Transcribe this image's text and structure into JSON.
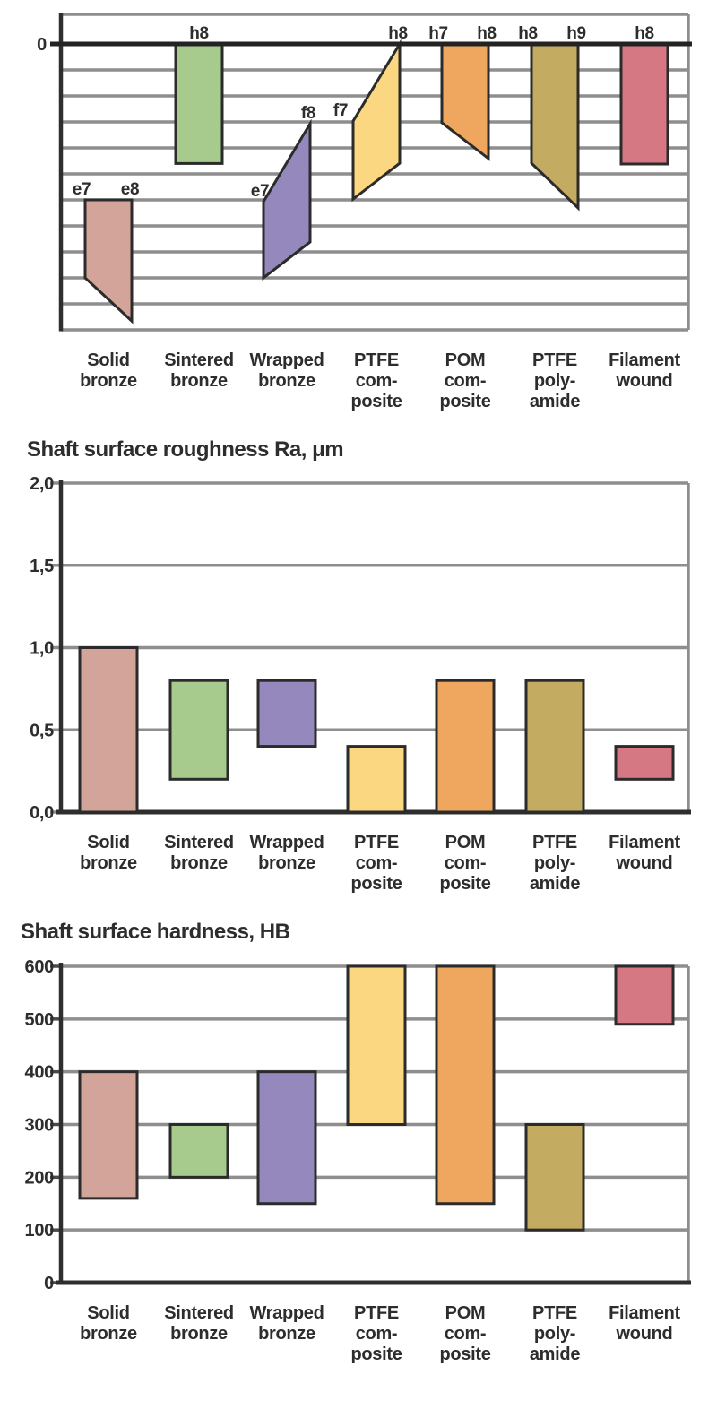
{
  "palette": {
    "background": "#ffffff",
    "text": "#2d2d2d",
    "grid": "#8E8E8E",
    "axis": "#2e2e2e",
    "zero_line": "#232323",
    "shape_stroke": "#2b2b2b"
  },
  "materials": [
    {
      "id": "solid-bronze",
      "label_lines": [
        "Solid",
        "bronze"
      ],
      "color": "#D3A49A"
    },
    {
      "id": "sintered-bronze",
      "label_lines": [
        "Sintered",
        "bronze"
      ],
      "color": "#A6CB8C"
    },
    {
      "id": "wrapped-bronze",
      "label_lines": [
        "Wrapped",
        "bronze"
      ],
      "color": "#9488BC"
    },
    {
      "id": "ptfe-composite",
      "label_lines": [
        "PTFE",
        "com-",
        "posite"
      ],
      "color": "#FAD780"
    },
    {
      "id": "pom-composite",
      "label_lines": [
        "POM",
        "com-",
        "posite"
      ],
      "color": "#EFA75F"
    },
    {
      "id": "ptfe-polyamide",
      "label_lines": [
        "PTFE",
        "poly-",
        "amide"
      ],
      "color": "#C3AB61"
    },
    {
      "id": "filament-wound",
      "label_lines": [
        "Filament",
        "wound"
      ],
      "color": "#D67884"
    }
  ],
  "chart_data": [
    {
      "type": "tolerance-zone",
      "title": "",
      "zero_label": "0",
      "y_axis_note": "0 line at top, 10 unlabeled gridlines below",
      "zones": [
        {
          "material": "Solid bronze",
          "labels": [
            "e7",
            "e8"
          ],
          "left_span": [
            6.0,
            9.0
          ],
          "right_span": [
            6.0,
            10.66
          ]
        },
        {
          "material": "Sintered bronze",
          "labels": [
            "h8"
          ],
          "span": [
            0,
            4.6
          ]
        },
        {
          "material": "Wrapped bronze",
          "labels": [
            "e7",
            "f8"
          ],
          "left_span": [
            6.07,
            9.0
          ],
          "right_span": [
            3.07,
            7.62
          ]
        },
        {
          "material": "PTFE composite",
          "labels": [
            "f7",
            "h8"
          ],
          "left_span": [
            2.97,
            5.97
          ],
          "right_span": [
            0,
            4.59
          ],
          "label_dx": [
            -14,
            -2
          ]
        },
        {
          "material": "POM composite",
          "labels": [
            "h7",
            "h8"
          ],
          "left_span": [
            0,
            3.03
          ],
          "right_span": [
            0,
            4.41
          ]
        },
        {
          "material": "PTFE polyamide",
          "labels": [
            "h8",
            "h9"
          ],
          "left_span": [
            0,
            4.59
          ],
          "right_span": [
            0,
            6.31
          ]
        },
        {
          "material": "Filament wound",
          "labels": [
            "h8"
          ],
          "span": [
            0,
            4.62
          ]
        }
      ]
    },
    {
      "type": "bar-range",
      "title": "Shaft surface roughness Ra, μm",
      "ymax": 2.0,
      "yticks": [
        {
          "label": "2,0",
          "value": 2.0
        },
        {
          "label": "1,5",
          "value": 1.5
        },
        {
          "label": "1,0",
          "value": 1.0
        },
        {
          "label": "0,5",
          "value": 0.5
        },
        {
          "label": "0,0",
          "value": 0.0
        }
      ],
      "ranges": [
        {
          "material": "Solid bronze",
          "low": 0.0,
          "high": 1.0
        },
        {
          "material": "Sintered bronze",
          "low": 0.2,
          "high": 0.8
        },
        {
          "material": "Wrapped bronze",
          "low": 0.4,
          "high": 0.8
        },
        {
          "material": "PTFE composite",
          "low": 0.0,
          "high": 0.4
        },
        {
          "material": "POM composite",
          "low": 0.0,
          "high": 0.8
        },
        {
          "material": "PTFE polyamide",
          "low": 0.0,
          "high": 0.8
        },
        {
          "material": "Filament wound",
          "low": 0.2,
          "high": 0.4
        }
      ]
    },
    {
      "type": "bar-range",
      "title": "Shaft surface hardness, HB",
      "ymax": 600,
      "yticks": [
        {
          "label": "600",
          "value": 600
        },
        {
          "label": "500",
          "value": 500
        },
        {
          "label": "400",
          "value": 400
        },
        {
          "label": "300",
          "value": 300
        },
        {
          "label": "200",
          "value": 200
        },
        {
          "label": "100",
          "value": 100
        },
        {
          "label": "0",
          "value": 0
        }
      ],
      "ranges": [
        {
          "material": "Solid bronze",
          "low": 160,
          "high": 400
        },
        {
          "material": "Sintered bronze",
          "low": 200,
          "high": 300
        },
        {
          "material": "Wrapped bronze",
          "low": 150,
          "high": 400
        },
        {
          "material": "PTFE composite",
          "low": 300,
          "high": 600
        },
        {
          "material": "POM composite",
          "low": 150,
          "high": 600
        },
        {
          "material": "PTFE polyamide",
          "low": 100,
          "high": 300
        },
        {
          "material": "Filament wound",
          "low": 490,
          "high": 600
        }
      ]
    }
  ]
}
